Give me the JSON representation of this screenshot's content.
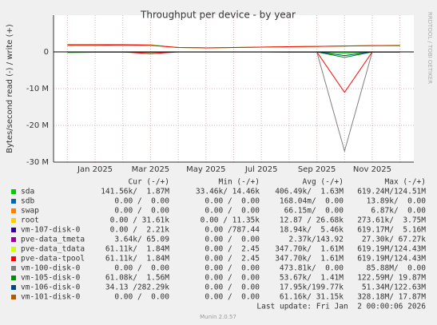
{
  "chart_data": {
    "type": "line",
    "title": "Throughput per device - by year",
    "y_label": "Bytes/second read (-) / write (+)",
    "side_label": "RRDTOOL / TOBI OETIKER",
    "categories": [
      null,
      "Jan 2025",
      null,
      "Mar 2025",
      null,
      "May 2025",
      null,
      "Jul 2025",
      null,
      "Sep 2025",
      null,
      "Nov 2025",
      null
    ],
    "ylim": [
      -30000000,
      10000000
    ],
    "yticks": [
      {
        "value": -30000000,
        "label": "-30 M"
      },
      {
        "value": -20000000,
        "label": "-20 M"
      },
      {
        "value": -10000000,
        "label": "-10 M"
      },
      0
    ],
    "grid": true,
    "legend_headers": [
      "Cur (-/+)",
      "Min (-/+)",
      "Avg (-/+)",
      "Max (-/+)"
    ],
    "series": [
      {
        "name": "sda",
        "color": "#00cc00",
        "values": [
          2000000,
          2000000,
          2000000,
          1900000,
          1200000,
          1100000,
          1200000,
          1300000,
          1400000,
          1500000,
          1600000,
          1700000,
          1800000
        ],
        "read": [
          -200000,
          -100000,
          -100000,
          -150000,
          -50000,
          -50000,
          -50000,
          -50000,
          -100000,
          -100000,
          -300000,
          -100000,
          -100000
        ],
        "stats": [
          "141.56k/  1.87M",
          "33.46k/ 14.46k",
          "406.49k/  1.63M",
          "619.24M/124.51M"
        ]
      },
      {
        "name": "sdb",
        "color": "#0066b3",
        "values": [
          0,
          0,
          0,
          0,
          0,
          0,
          0,
          0,
          0,
          0,
          0,
          0,
          0
        ],
        "read": [
          0,
          0,
          0,
          0,
          0,
          0,
          0,
          0,
          0,
          0,
          0,
          0,
          0
        ],
        "stats": [
          "0.00 /  0.00",
          "0.00 /  0.00",
          "168.04m/  0.00",
          "13.89k/  0.00"
        ]
      },
      {
        "name": "swap",
        "color": "#ff8000",
        "values": [
          0,
          0,
          0,
          0,
          0,
          0,
          0,
          0,
          0,
          0,
          0,
          0,
          0
        ],
        "read": [
          0,
          0,
          0,
          0,
          0,
          0,
          0,
          0,
          0,
          0,
          0,
          0,
          0
        ],
        "stats": [
          "0.00 /  0.00",
          "0.00 /  0.00",
          "66.15m/  0.00",
          "6.87k/  0.00"
        ]
      },
      {
        "name": "root",
        "color": "#ffcc00",
        "values": [
          0,
          0,
          0,
          0,
          0,
          0,
          0,
          0,
          0,
          0,
          0,
          0,
          0
        ],
        "read": [
          0,
          0,
          0,
          0,
          0,
          0,
          0,
          0,
          0,
          0,
          0,
          0,
          0
        ],
        "stats": [
          "0.00 / 31.61k",
          "0.00 / 11.35k",
          "12.87 / 26.68k",
          "273.61k/  3.75M"
        ]
      },
      {
        "name": "vm-107-disk-0",
        "color": "#330099",
        "values": [
          0,
          0,
          0,
          0,
          0,
          0,
          0,
          0,
          0,
          0,
          0,
          0,
          0
        ],
        "read": [
          0,
          0,
          0,
          0,
          0,
          0,
          0,
          0,
          0,
          0,
          0,
          0,
          0
        ],
        "stats": [
          "0.00 /  2.21k",
          "0.00 /787.44",
          "18.94k/  5.46k",
          "619.17M/  5.16M"
        ]
      },
      {
        "name": "pve-data_tmeta",
        "color": "#990099",
        "values": [
          0,
          0,
          0,
          0,
          0,
          0,
          0,
          0,
          0,
          0,
          0,
          0,
          0
        ],
        "read": [
          0,
          0,
          0,
          0,
          0,
          0,
          0,
          0,
          0,
          0,
          0,
          0,
          0
        ],
        "stats": [
          "3.64k/ 65.09",
          "0.00 /  0.00",
          "2.37k/143.92",
          "27.30k/ 67.27k"
        ]
      },
      {
        "name": "pve-data_tdata",
        "color": "#ccff00",
        "values": [
          1800000,
          1800000,
          1900000,
          1800000,
          1200000,
          1100000,
          1200000,
          1300000,
          1400000,
          1500000,
          1600000,
          1700000,
          1700000
        ],
        "read": [
          0,
          0,
          0,
          0,
          0,
          0,
          0,
          0,
          0,
          0,
          0,
          0,
          0
        ],
        "stats": [
          "61.11k/  1.84M",
          "0.00 /  2.45",
          "347.70k/  1.61M",
          "619.19M/124.43M"
        ]
      },
      {
        "name": "pve-data-tpool",
        "color": "#ff0000",
        "values": [
          1800000,
          1800000,
          1900000,
          1800000,
          1200000,
          1100000,
          1200000,
          1300000,
          1400000,
          1500000,
          1600000,
          1700000,
          1700000
        ],
        "read": [
          0,
          0,
          0,
          -500000,
          0,
          0,
          0,
          0,
          0,
          0,
          -11000000,
          0,
          0
        ],
        "stats": [
          "61.11k/  1.84M",
          "0.00 /  2.45",
          "347.70k/  1.61M",
          "619.19M/124.43M"
        ]
      },
      {
        "name": "vm-100-disk-0",
        "color": "#808080",
        "values": [
          0,
          0,
          0,
          0,
          0,
          0,
          0,
          0,
          0,
          0,
          0,
          0,
          0
        ],
        "read": [
          0,
          0,
          0,
          0,
          0,
          0,
          0,
          0,
          0,
          0,
          -27000000,
          0,
          0
        ],
        "stats": [
          "0.00 /  0.00",
          "0.00 /  0.00",
          "473.81k/  0.00",
          "85.88M/  0.00"
        ]
      },
      {
        "name": "vm-105-disk-0",
        "color": "#008f00",
        "values": [
          0,
          0,
          0,
          0,
          0,
          0,
          0,
          0,
          0,
          0,
          0,
          0,
          0
        ],
        "read": [
          0,
          0,
          0,
          0,
          0,
          0,
          0,
          0,
          0,
          0,
          -1500000,
          0,
          0
        ],
        "stats": [
          "61.08k/  1.56M",
          "0.00 /  0.00",
          "53.67k/  1.41M",
          "122.59M/ 19.87M"
        ]
      },
      {
        "name": "vm-106-disk-0",
        "color": "#00487d",
        "values": [
          0,
          0,
          0,
          0,
          0,
          0,
          0,
          0,
          0,
          0,
          0,
          0,
          0
        ],
        "read": [
          0,
          0,
          0,
          0,
          0,
          0,
          0,
          0,
          0,
          0,
          -1000000,
          0,
          0
        ],
        "stats": [
          "34.13 /282.29k",
          "0.00 /  0.00",
          "17.95k/199.77k",
          "51.34M/122.63M"
        ]
      },
      {
        "name": "vm-101-disk-0",
        "color": "#b35a00",
        "values": [
          0,
          0,
          0,
          0,
          0,
          0,
          0,
          0,
          0,
          0,
          0,
          0,
          0
        ],
        "read": [
          0,
          0,
          0,
          0,
          0,
          0,
          0,
          0,
          0,
          0,
          0,
          0,
          0
        ],
        "stats": [
          "0.00 /  0.00",
          "0.00 /  0.00",
          "61.16k/ 31.15k",
          "328.18M/ 17.87M"
        ]
      }
    ],
    "last_update": "Last update: Fri Jan  2 00:00:06 2026",
    "footer": "Munin 2.0.57"
  }
}
